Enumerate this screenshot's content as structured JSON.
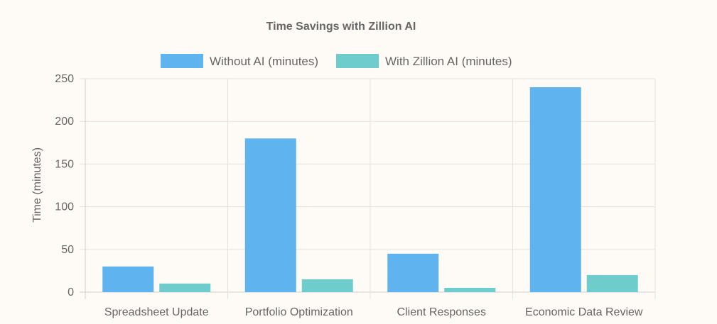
{
  "chart_data": {
    "type": "bar",
    "title": "Time Savings with Zillion AI",
    "xlabel": "",
    "ylabel": "Time (minutes)",
    "ylim": [
      0,
      250
    ],
    "yticks": [
      0,
      50,
      100,
      150,
      200,
      250
    ],
    "grid": true,
    "legend_position": "top",
    "categories": [
      "Spreadsheet Update",
      "Portfolio Optimization",
      "Client Responses",
      "Economic Data Review"
    ],
    "series": [
      {
        "name": "Without AI (minutes)",
        "values": [
          30,
          180,
          45,
          240
        ],
        "color": "#5fb3ee"
      },
      {
        "name": "With Zillion AI (minutes)",
        "values": [
          10,
          15,
          5,
          20
        ],
        "color": "#6ecdcc"
      }
    ]
  }
}
